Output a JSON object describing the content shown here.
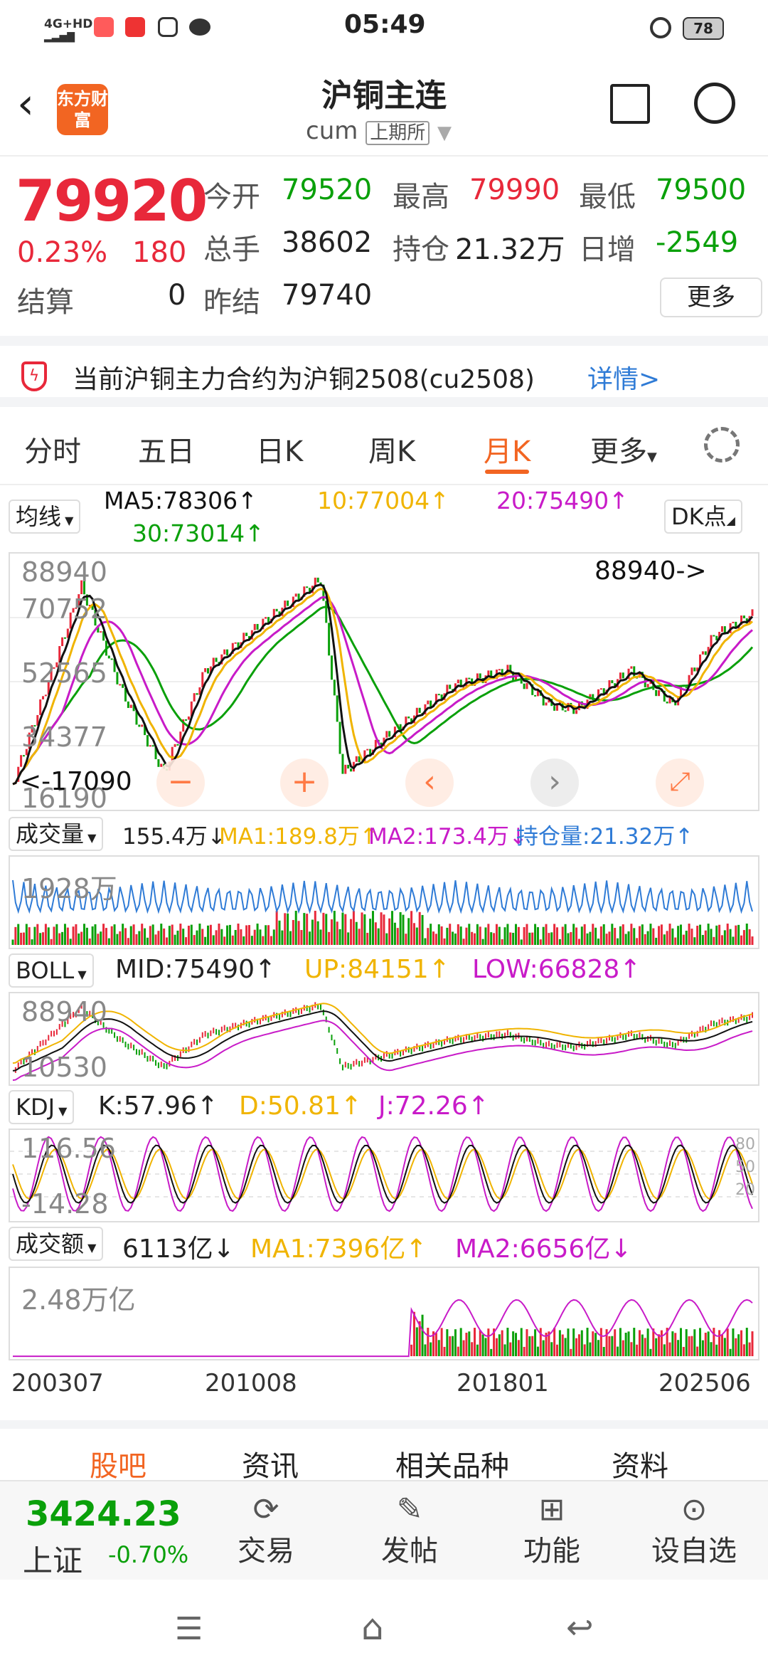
{
  "status": {
    "network": "4G+HD",
    "time": "05:49",
    "battery": "78"
  },
  "header": {
    "title": "沪铜主连",
    "code": "cum",
    "exchange": "上期所",
    "brand": "东方财富"
  },
  "quote": {
    "price": "79920",
    "pct": "0.23%",
    "change": "180",
    "open_label": "今开",
    "open": "79520",
    "high_label": "最高",
    "high": "79990",
    "low_label": "最低",
    "low": "79500",
    "vol_label": "总手",
    "vol": "38602",
    "oi_label": "持仓",
    "oi": "21.32万",
    "daily_label": "日增",
    "daily": "-2549",
    "settle_label": "结算",
    "settle": "0",
    "prev_label": "昨结",
    "prev": "79740",
    "more": "更多"
  },
  "notice": {
    "text": "当前沪铜主力合约为沪铜2508(cu2508)",
    "detail": "详情>"
  },
  "tabs": [
    "分时",
    "五日",
    "日K",
    "周K",
    "月K",
    "更多"
  ],
  "tab_active": "月K",
  "ma": {
    "select": "均线",
    "ma5": "MA5:78306↑",
    "ma10": "10:77004↑",
    "ma20": "20:75490↑",
    "ma30": "30:73014↑",
    "dk": "DK点"
  },
  "main_chart": {
    "y_top": "88940",
    "y_2": "70752",
    "y_3": "52565",
    "y_4": "34377",
    "y_bottom": "16190",
    "max_label": "88940->",
    "min_label": "<-17090"
  },
  "volume": {
    "select": "成交量",
    "v": "155.4万↓",
    "ma1": "MA1:189.8万↑",
    "ma2": "MA2:173.4万↓",
    "oi": "持仓量:21.32万↑",
    "y_top": "1928万"
  },
  "boll": {
    "select": "BOLL",
    "mid": "MID:75490↑",
    "up": "UP:84151↑",
    "low": "LOW:66828↑",
    "y_top": "88940",
    "y_bottom": "10530"
  },
  "kdj": {
    "select": "KDJ",
    "k": "K:57.96↑",
    "d": "D:50.81↑",
    "j": "J:72.26↑",
    "y_top": "116.56",
    "y_bottom": "-14.28",
    "l80": "80",
    "l50": "50",
    "l20": "20"
  },
  "amount": {
    "select": "成交额",
    "v": "6113亿↓",
    "ma1": "MA1:7396亿↑",
    "ma2": "MA2:6656亿↓",
    "y_top": "2.48万亿"
  },
  "xaxis": [
    "200307",
    "201008",
    "201801",
    "202506"
  ],
  "subtabs": [
    "股吧",
    "资讯",
    "相关品种",
    "资料"
  ],
  "index": {
    "value": "3424.23",
    "name": "上证",
    "pct": "-0.70%"
  },
  "bottom": [
    "交易",
    "发帖",
    "功能",
    "设自选"
  ],
  "colors": {
    "up": "#e8283a",
    "down": "#0aa00a",
    "ma5": "#111111",
    "ma10": "#f0b400",
    "ma20": "#c81bc8",
    "ma30": "#0aa00a",
    "accent": "#f26522"
  }
}
